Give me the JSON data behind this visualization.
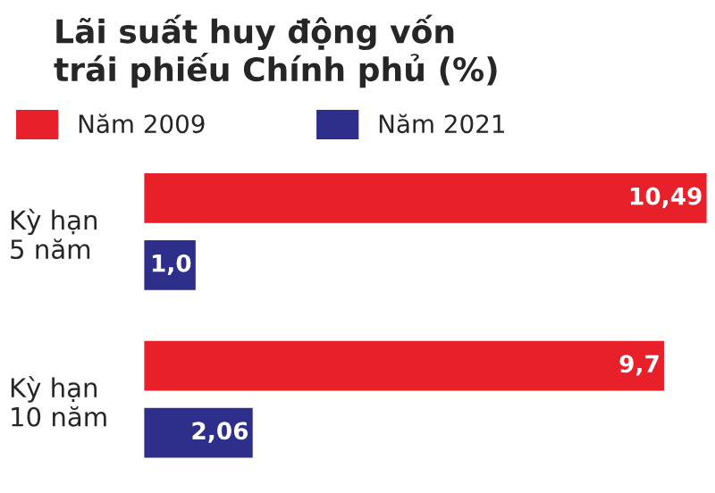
{
  "chart_data": {
    "type": "bar",
    "orientation": "horizontal",
    "title": "Lãi suất huy động vốn\ntrái phiếu Chính phủ (%)",
    "categories": [
      "Kỳ hạn\n5 năm",
      "Kỳ hạn\n10 năm"
    ],
    "series": [
      {
        "name": "Năm 2009",
        "color": "#e8202a",
        "values": [
          10.49,
          9.7
        ],
        "value_labels": [
          "10,49",
          "9,7"
        ]
      },
      {
        "name": "Năm 2021",
        "color": "#2e2f8a",
        "values": [
          1.0,
          2.06
        ],
        "value_labels": [
          "1,0",
          "2,06"
        ]
      }
    ],
    "legend": "top left",
    "tick_labels": "y",
    "grid": false
  }
}
